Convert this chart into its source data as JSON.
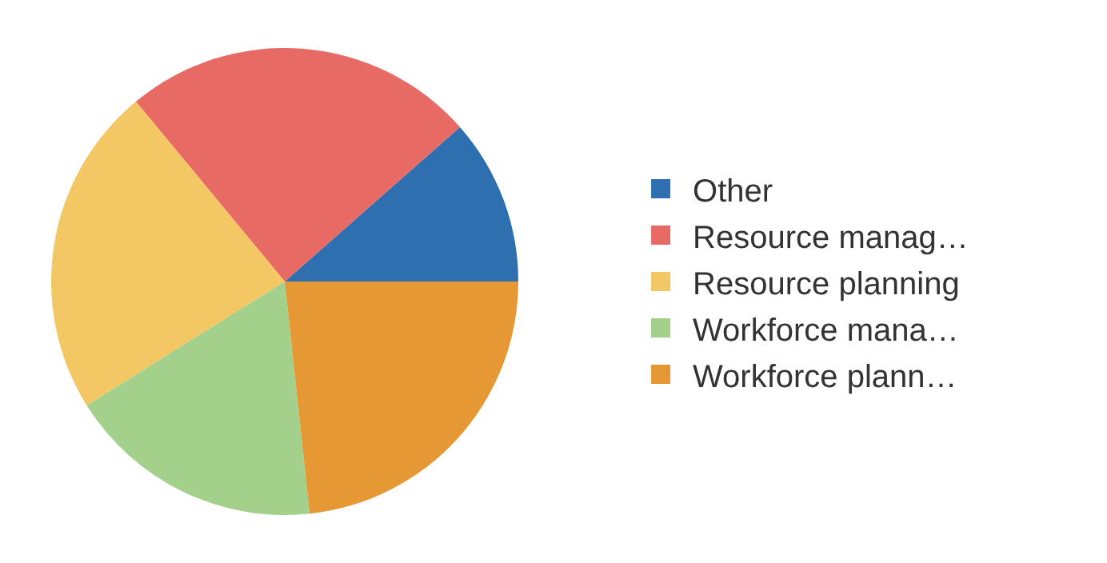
{
  "chart_data": {
    "type": "pie",
    "categories": [
      "Other",
      "Resource manag…",
      "Resource planning",
      "Workforce mana…",
      "Workforce plann…"
    ],
    "values": [
      11.5,
      24.5,
      22.9,
      17.8,
      23.3
    ],
    "colors": [
      "#2e6fb0",
      "#e86a64",
      "#f3c864",
      "#a3d08a",
      "#e69834"
    ],
    "legend": "right"
  }
}
